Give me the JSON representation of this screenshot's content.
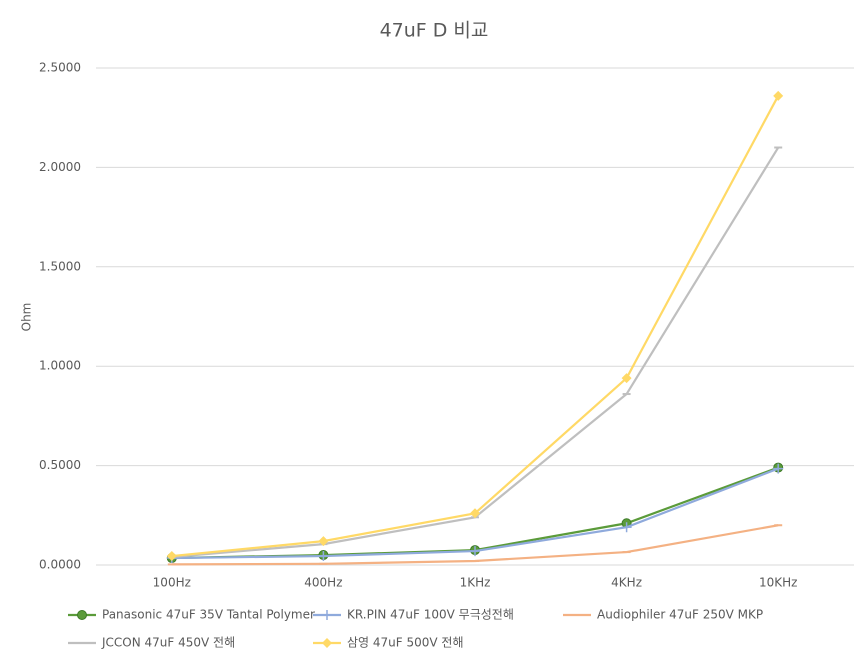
{
  "chart_data": {
    "type": "line",
    "title": "47uF D 비교",
    "y_label": "Ohm",
    "categories": [
      "100Hz",
      "400Hz",
      "1KHz",
      "4KHz",
      "10KHz"
    ],
    "ylim": [
      0,
      2.5
    ],
    "yticks": [
      {
        "value": 0,
        "label": "0.0000"
      },
      {
        "value": 0.5,
        "label": "0.5000"
      },
      {
        "value": 1,
        "label": "1.0000"
      },
      {
        "value": 1.5,
        "label": "1.5000"
      },
      {
        "value": 2,
        "label": "2.0000"
      },
      {
        "value": 2.5,
        "label": "2.5000"
      }
    ],
    "grid": true,
    "legend": "bottom",
    "series": [
      {
        "name": "Panasonic 47uF 35V Tantal Polymer",
        "color": "#5b9b3a",
        "marker": "circle",
        "values": [
          0.035,
          0.05,
          0.075,
          0.21,
          0.49
        ]
      },
      {
        "name": "KR.PIN 47uF 100V 무극성전해",
        "color": "#8faadc",
        "marker": "plus",
        "values": [
          0.035,
          0.045,
          0.07,
          0.19,
          0.485
        ]
      },
      {
        "name": "Audiophiler 47uF 250V MKP",
        "color": "#f4b183",
        "marker": "dash",
        "values": [
          0.003,
          0.006,
          0.02,
          0.065,
          0.2
        ]
      },
      {
        "name": "JCCON 47uF 450V 전해",
        "color": "#bfbfbf",
        "marker": "dash",
        "values": [
          0.04,
          0.105,
          0.24,
          0.86,
          2.1
        ]
      },
      {
        "name": "삼영 47uF 500V 전해",
        "color": "#ffd966",
        "marker": "diamond",
        "values": [
          0.045,
          0.12,
          0.26,
          0.94,
          2.36
        ]
      }
    ]
  }
}
